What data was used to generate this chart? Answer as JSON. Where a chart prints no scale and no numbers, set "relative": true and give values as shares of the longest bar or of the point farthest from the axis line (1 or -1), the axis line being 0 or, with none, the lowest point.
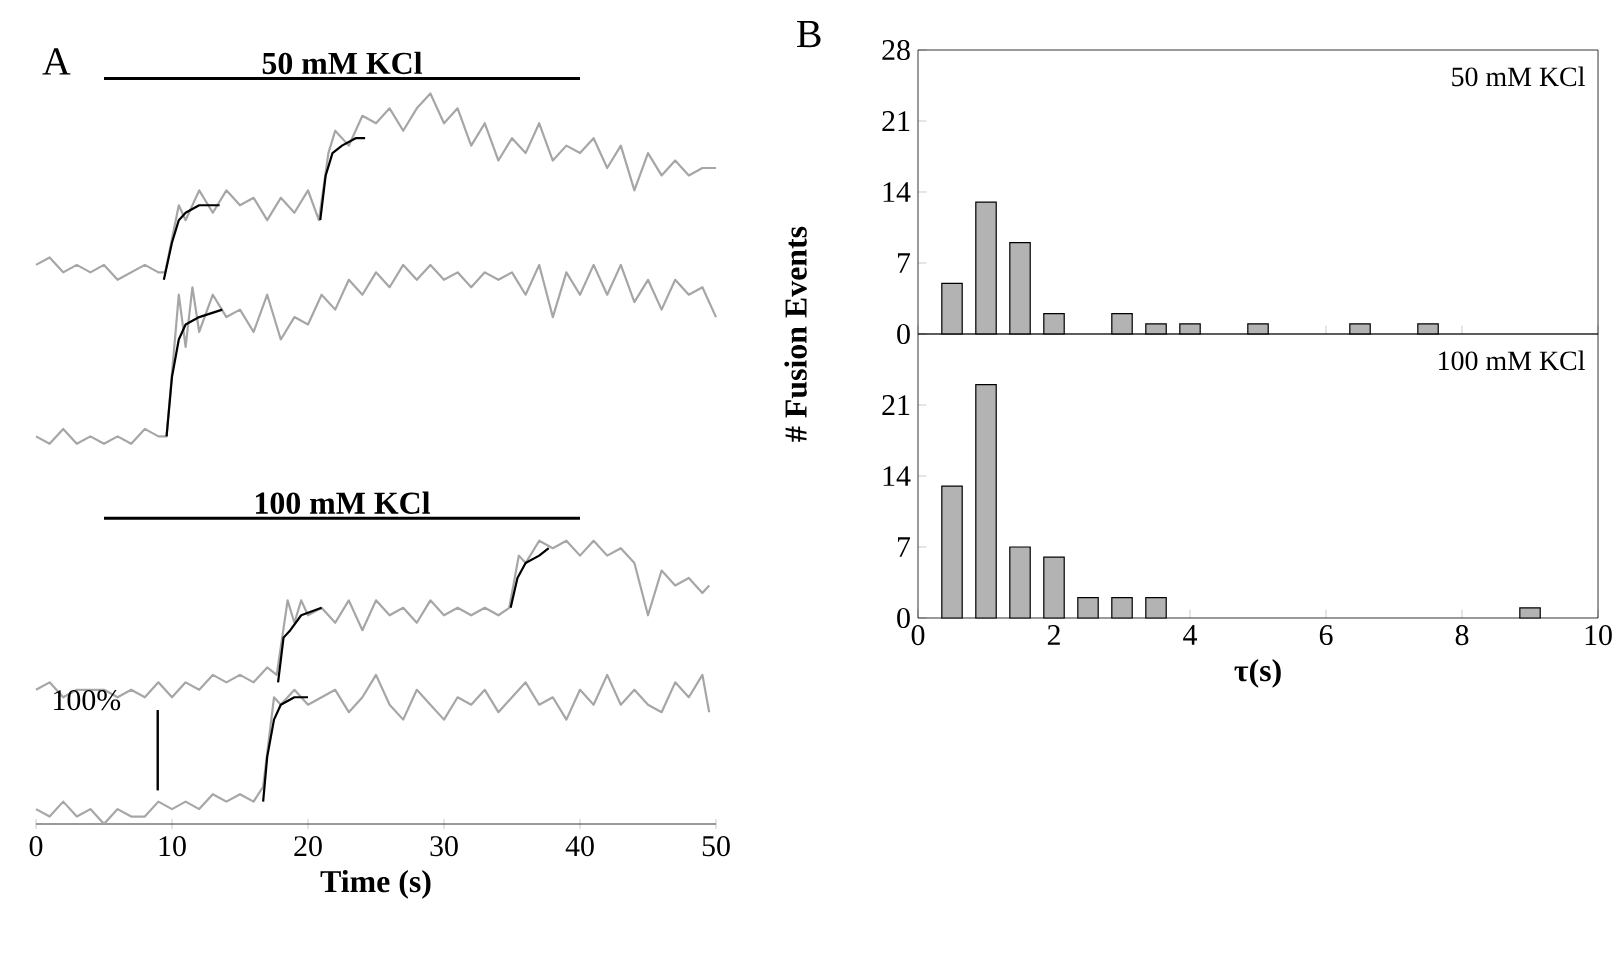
{
  "chart_data": [
    {
      "type": "line",
      "relative": true,
      "tick_labels": "x",
      "xlabel": "Time (s)",
      "xlim": [
        0,
        50
      ],
      "xticks": [
        0,
        10,
        20,
        30,
        40,
        50
      ],
      "annotations": [
        "A",
        "100%"
      ],
      "series": [
        {
          "color": "#a6a6a6",
          "x": [
            0,
            1,
            2,
            3,
            4,
            5,
            6,
            7,
            8,
            9,
            9.5,
            10.5,
            11,
            12,
            13,
            14,
            15,
            16,
            17,
            18,
            19,
            20,
            20.8,
            21.5,
            22,
            23,
            24,
            25,
            26,
            27,
            28,
            29,
            30,
            31,
            32,
            33,
            34,
            35,
            36,
            37,
            38,
            39,
            40,
            41,
            42,
            43,
            44,
            45,
            46,
            47,
            48,
            49,
            50
          ],
          "values": [
            0.75,
            0.76,
            0.74,
            0.75,
            0.74,
            0.75,
            0.73,
            0.74,
            0.75,
            0.74,
            0.74,
            0.83,
            0.81,
            0.85,
            0.82,
            0.85,
            0.83,
            0.84,
            0.81,
            0.84,
            0.82,
            0.85,
            0.81,
            0.9,
            0.93,
            0.91,
            0.95,
            0.94,
            0.96,
            0.93,
            0.96,
            0.98,
            0.94,
            0.96,
            0.91,
            0.94,
            0.89,
            0.92,
            0.9,
            0.94,
            0.89,
            0.91,
            0.9,
            0.92,
            0.88,
            0.91,
            0.85,
            0.9,
            0.87,
            0.89,
            0.87,
            0.88,
            0.88
          ]
        },
        {
          "color": "#a6a6a6",
          "x": [
            0,
            1,
            2,
            3,
            4,
            5,
            6,
            7,
            8,
            9,
            9.6,
            10.5,
            11,
            11.5,
            12,
            13,
            14,
            15,
            16,
            17,
            18,
            19,
            20,
            21,
            22,
            23,
            24,
            25,
            26,
            27,
            28,
            29,
            30,
            31,
            32,
            33,
            34,
            35,
            36,
            37,
            38,
            39,
            40,
            41,
            42,
            43,
            44,
            45,
            46,
            47,
            48,
            49,
            50
          ],
          "values": [
            0.52,
            0.51,
            0.53,
            0.51,
            0.52,
            0.51,
            0.52,
            0.51,
            0.53,
            0.52,
            0.52,
            0.71,
            0.64,
            0.72,
            0.66,
            0.71,
            0.68,
            0.69,
            0.66,
            0.71,
            0.65,
            0.68,
            0.67,
            0.71,
            0.69,
            0.73,
            0.71,
            0.74,
            0.72,
            0.75,
            0.73,
            0.75,
            0.73,
            0.74,
            0.72,
            0.74,
            0.73,
            0.74,
            0.71,
            0.75,
            0.68,
            0.74,
            0.71,
            0.75,
            0.71,
            0.75,
            0.7,
            0.73,
            0.69,
            0.73,
            0.71,
            0.72,
            0.68
          ]
        },
        {
          "color": "#a6a6a6",
          "x": [
            0,
            1,
            2,
            3,
            4,
            5,
            6,
            7,
            8,
            9,
            10,
            11,
            12,
            13,
            14,
            15,
            16,
            17,
            17.7,
            18.5,
            19,
            19.5,
            20,
            21,
            22,
            23,
            24,
            25,
            26,
            27,
            28,
            29,
            30,
            31,
            32,
            33,
            34,
            34.8,
            35.5,
            36,
            37,
            38,
            39,
            40,
            41,
            42,
            43,
            44,
            45,
            46,
            47,
            48,
            49,
            49.5
          ],
          "values": [
            0.18,
            0.19,
            0.17,
            0.18,
            0.18,
            0.18,
            0.17,
            0.18,
            0.17,
            0.19,
            0.17,
            0.19,
            0.18,
            0.2,
            0.19,
            0.2,
            0.19,
            0.21,
            0.2,
            0.3,
            0.27,
            0.3,
            0.28,
            0.29,
            0.27,
            0.3,
            0.26,
            0.3,
            0.28,
            0.29,
            0.27,
            0.3,
            0.28,
            0.29,
            0.28,
            0.29,
            0.28,
            0.29,
            0.36,
            0.35,
            0.38,
            0.37,
            0.38,
            0.36,
            0.38,
            0.36,
            0.37,
            0.35,
            0.28,
            0.34,
            0.32,
            0.33,
            0.31,
            0.32
          ]
        },
        {
          "color": "#a6a6a6",
          "x": [
            0,
            1,
            2,
            3,
            4,
            5,
            6,
            7,
            8,
            9,
            10,
            11,
            12,
            13,
            14,
            15,
            16,
            16.7,
            17.5,
            18,
            19,
            20,
            21,
            22,
            23,
            24,
            25,
            26,
            27,
            28,
            29,
            30,
            31,
            32,
            33,
            34,
            35,
            36,
            37,
            38,
            39,
            40,
            41,
            42,
            43,
            44,
            45,
            46,
            47,
            48,
            49,
            49.5
          ],
          "values": [
            0.02,
            0.01,
            0.03,
            0.01,
            0.02,
            0,
            0.02,
            0.01,
            0.01,
            0.03,
            0.02,
            0.03,
            0.02,
            0.04,
            0.03,
            0.04,
            0.03,
            0.05,
            0.17,
            0.16,
            0.18,
            0.16,
            0.17,
            0.18,
            0.15,
            0.17,
            0.2,
            0.16,
            0.14,
            0.18,
            0.16,
            0.14,
            0.17,
            0.16,
            0.18,
            0.15,
            0.17,
            0.19,
            0.16,
            0.17,
            0.14,
            0.18,
            0.16,
            0.2,
            0.16,
            0.18,
            0.16,
            0.15,
            0.19,
            0.17,
            0.2,
            0.15
          ]
        },
        {
          "color": "#000000",
          "x": [
            9.4,
            10,
            10.5,
            11,
            12,
            13.5
          ],
          "values": [
            0.73,
            0.78,
            0.81,
            0.82,
            0.83,
            0.83
          ]
        },
        {
          "color": "#000000",
          "x": [
            20.9,
            21.3,
            21.8,
            22.5,
            23.5,
            24.2
          ],
          "values": [
            0.81,
            0.87,
            0.9,
            0.91,
            0.92,
            0.92
          ]
        },
        {
          "color": "#000000",
          "x": [
            9.6,
            10,
            10.5,
            11,
            12,
            13.7
          ],
          "values": [
            0.52,
            0.6,
            0.65,
            0.67,
            0.68,
            0.69
          ]
        },
        {
          "color": "#000000",
          "x": [
            17.8,
            18.2,
            18.7,
            19.5,
            21
          ],
          "values": [
            0.19,
            0.25,
            0.26,
            0.28,
            0.29
          ]
        },
        {
          "color": "#000000",
          "x": [
            34.9,
            35.4,
            36,
            37,
            37.7
          ],
          "values": [
            0.29,
            0.33,
            0.35,
            0.36,
            0.37
          ]
        },
        {
          "color": "#000000",
          "x": [
            16.7,
            17,
            17.5,
            18,
            19,
            20
          ],
          "values": [
            0.03,
            0.09,
            0.14,
            0.16,
            0.17,
            0.17
          ]
        },
        {
          "name": "50 mM KCl",
          "color": "#000000",
          "x": [
            5,
            40
          ],
          "values": [
            1,
            1
          ]
        },
        {
          "name": "100 mM KCl",
          "color": "#000000",
          "x": [
            5,
            40
          ],
          "values": [
            0.41,
            0.41
          ]
        }
      ]
    },
    {
      "type": "bar",
      "tick_labels": "y",
      "ylabel": "# Fusion Events",
      "xlim": [
        0,
        10
      ],
      "xticks": [
        0,
        2,
        4,
        6,
        8,
        10
      ],
      "ylim": [
        0,
        28
      ],
      "yticks": [
        0,
        7,
        14,
        21,
        28
      ],
      "annotations": [
        "B",
        "50 mM KCl"
      ],
      "x": [
        0.5,
        1,
        1.5,
        2,
        3,
        3.5,
        4,
        5,
        6.5,
        7.5
      ],
      "values": [
        5,
        13,
        9,
        2,
        2,
        1,
        1,
        1,
        1,
        1
      ],
      "color": "#b3b3b3"
    },
    {
      "type": "bar",
      "xlabel": "τ(s)",
      "xlim": [
        0,
        10
      ],
      "xticks": [
        0,
        2,
        4,
        6,
        8,
        10
      ],
      "ylim": [
        0,
        28
      ],
      "yticks": [
        0,
        7,
        14,
        21
      ],
      "annotations": [
        "100 mM KCl"
      ],
      "x": [
        0.5,
        1,
        1.5,
        2,
        2.5,
        3,
        3.5,
        9
      ],
      "values": [
        13,
        23,
        7,
        6,
        2,
        2,
        2,
        1
      ],
      "color": "#b3b3b3"
    }
  ]
}
